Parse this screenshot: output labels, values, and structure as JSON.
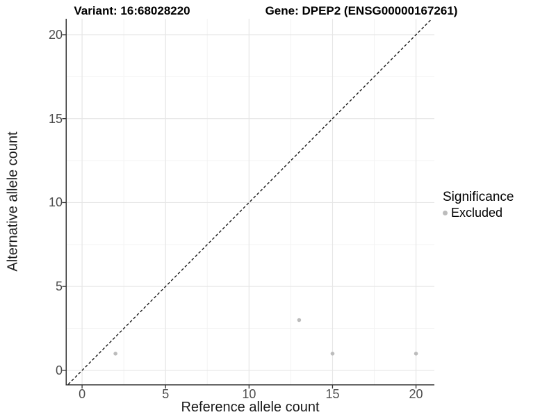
{
  "header": {
    "variant_title": "Variant: 16:68028220",
    "gene_title": "Gene: DPEP2 (ENSG00000167261)"
  },
  "chart_data": {
    "type": "scatter",
    "xlabel": "Reference allele count",
    "ylabel": "Alternative allele count",
    "xlim": [
      -0.92,
      21.1
    ],
    "ylim": [
      -0.83,
      20.95
    ],
    "x_ticks": [
      0,
      5,
      10,
      15,
      20
    ],
    "y_ticks": [
      0,
      5,
      10,
      15,
      20
    ],
    "x_minor_ticks": [
      2.5,
      7.5,
      12.5,
      17.5
    ],
    "y_minor_ticks": [
      2.5,
      7.5,
      12.5,
      17.5
    ],
    "grid": "major+minor",
    "identity_line": {
      "equation": "y = x",
      "style": "dashed"
    },
    "series": [
      {
        "name": "Excluded",
        "color": "#bcbcbc",
        "point_radius": 2.8,
        "points": [
          {
            "x": 2,
            "y": 1
          },
          {
            "x": 13,
            "y": 3
          },
          {
            "x": 15,
            "y": 1
          },
          {
            "x": 20,
            "y": 1
          }
        ]
      }
    ]
  },
  "legend": {
    "title": "Significance",
    "position": "right",
    "items": [
      {
        "label": "Excluded",
        "color": "#bcbcbc"
      }
    ]
  },
  "colors": {
    "background": "#ffffff",
    "grid_major": "#e6e6e6",
    "grid_minor": "#f3f3f3",
    "axis_line": "#333333",
    "tick_mark": "#333333",
    "tick_text": "#4d4d4d",
    "axis_title_text": "#1a1a1a",
    "title_text": "#000000",
    "identity_line": "#1a1a1a",
    "point": "#bcbcbc"
  }
}
